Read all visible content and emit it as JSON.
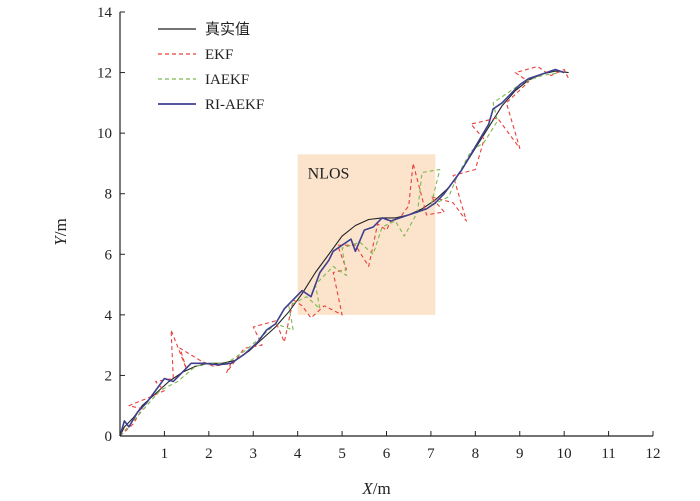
{
  "chart_data": {
    "type": "line",
    "xlabel_var": "X",
    "xlabel_unit": "/m",
    "ylabel_var": "Y",
    "ylabel_unit": "/m",
    "xlim": [
      0,
      12
    ],
    "ylim": [
      0,
      14
    ],
    "xticks": [
      1,
      2,
      3,
      4,
      5,
      6,
      7,
      8,
      9,
      10,
      11,
      12
    ],
    "yticks": [
      0,
      2,
      4,
      6,
      8,
      10,
      12,
      14
    ],
    "grid": false,
    "legend_position": "top-left",
    "annotation": {
      "label": "NLOS",
      "region_x": [
        4.0,
        7.1
      ],
      "region_y": [
        4.0,
        9.3
      ],
      "color": "#fbe3cc"
    },
    "series": [
      {
        "name": "真实值",
        "color": "#222222",
        "style": "solid",
        "points": [
          [
            0.0,
            0.0
          ],
          [
            0.1,
            0.3
          ],
          [
            0.3,
            0.6
          ],
          [
            0.5,
            1.0
          ],
          [
            0.8,
            1.4
          ],
          [
            1.1,
            1.8
          ],
          [
            1.4,
            2.1
          ],
          [
            1.7,
            2.3
          ],
          [
            2.0,
            2.4
          ],
          [
            2.3,
            2.4
          ],
          [
            2.6,
            2.5
          ],
          [
            2.9,
            2.8
          ],
          [
            3.2,
            3.2
          ],
          [
            3.5,
            3.6
          ],
          [
            3.8,
            4.1
          ],
          [
            4.1,
            4.7
          ],
          [
            4.4,
            5.4
          ],
          [
            4.7,
            6.0
          ],
          [
            5.0,
            6.6
          ],
          [
            5.3,
            6.95
          ],
          [
            5.6,
            7.15
          ],
          [
            5.9,
            7.2
          ],
          [
            6.2,
            7.2
          ],
          [
            6.5,
            7.3
          ],
          [
            6.8,
            7.5
          ],
          [
            7.1,
            7.8
          ],
          [
            7.4,
            8.2
          ],
          [
            7.7,
            8.8
          ],
          [
            8.0,
            9.5
          ],
          [
            8.3,
            10.2
          ],
          [
            8.6,
            10.9
          ],
          [
            8.9,
            11.4
          ],
          [
            9.2,
            11.75
          ],
          [
            9.5,
            11.95
          ],
          [
            9.8,
            12.05
          ],
          [
            10.1,
            12.0
          ]
        ]
      },
      {
        "name": "EKF",
        "color": "#e8403a",
        "style": "dashed",
        "points": [
          [
            0.0,
            0.0
          ],
          [
            0.3,
            0.4
          ],
          [
            0.5,
            0.9
          ],
          [
            0.2,
            1.0
          ],
          [
            0.7,
            1.3
          ],
          [
            1.0,
            1.5
          ],
          [
            0.8,
            1.8
          ],
          [
            1.2,
            1.9
          ],
          [
            1.15,
            3.5
          ],
          [
            1.5,
            2.2
          ],
          [
            1.35,
            2.9
          ],
          [
            1.8,
            2.5
          ],
          [
            2.1,
            2.3
          ],
          [
            2.5,
            2.4
          ],
          [
            2.4,
            2.1
          ],
          [
            2.8,
            2.9
          ],
          [
            3.2,
            3.0
          ],
          [
            3.0,
            3.6
          ],
          [
            3.5,
            3.8
          ],
          [
            3.7,
            3.1
          ],
          [
            3.9,
            4.5
          ],
          [
            4.1,
            4.3
          ],
          [
            4.3,
            3.9
          ],
          [
            4.6,
            4.3
          ],
          [
            5.0,
            4.0
          ],
          [
            4.8,
            5.4
          ],
          [
            5.1,
            5.5
          ],
          [
            4.9,
            6.3
          ],
          [
            5.3,
            6.3
          ],
          [
            5.6,
            5.6
          ],
          [
            5.8,
            7.0
          ],
          [
            6.0,
            6.8
          ],
          [
            6.1,
            7.1
          ],
          [
            6.3,
            7.2
          ],
          [
            6.5,
            7.6
          ],
          [
            6.6,
            9.0
          ],
          [
            6.9,
            7.3
          ],
          [
            7.3,
            7.4
          ],
          [
            7.0,
            7.9
          ],
          [
            7.5,
            7.7
          ],
          [
            7.8,
            7.1
          ],
          [
            7.5,
            8.6
          ],
          [
            8.0,
            8.8
          ],
          [
            8.2,
            9.8
          ],
          [
            7.9,
            10.3
          ],
          [
            8.5,
            10.5
          ],
          [
            9.0,
            9.5
          ],
          [
            8.7,
            11.0
          ],
          [
            9.2,
            11.7
          ],
          [
            8.9,
            12.0
          ],
          [
            9.4,
            12.2
          ],
          [
            9.7,
            11.9
          ],
          [
            10.0,
            12.1
          ],
          [
            10.1,
            11.8
          ]
        ]
      },
      {
        "name": "IAEKF",
        "color": "#7db94e",
        "style": "dashed",
        "points": [
          [
            0.0,
            0.0
          ],
          [
            0.3,
            0.5
          ],
          [
            0.6,
            1.0
          ],
          [
            0.9,
            1.5
          ],
          [
            1.3,
            1.8
          ],
          [
            1.7,
            2.3
          ],
          [
            2.0,
            2.4
          ],
          [
            2.4,
            2.4
          ],
          [
            2.8,
            2.8
          ],
          [
            3.2,
            3.3
          ],
          [
            3.5,
            3.7
          ],
          [
            3.9,
            3.5
          ],
          [
            3.8,
            4.3
          ],
          [
            4.2,
            4.6
          ],
          [
            4.5,
            4.2
          ],
          [
            4.4,
            5.0
          ],
          [
            4.8,
            5.6
          ],
          [
            5.1,
            5.3
          ],
          [
            5.0,
            6.2
          ],
          [
            5.4,
            6.4
          ],
          [
            5.7,
            6.0
          ],
          [
            5.9,
            6.9
          ],
          [
            6.2,
            7.1
          ],
          [
            6.4,
            6.6
          ],
          [
            6.7,
            7.4
          ],
          [
            6.8,
            8.7
          ],
          [
            7.2,
            8.8
          ],
          [
            7.0,
            7.6
          ],
          [
            7.4,
            7.9
          ],
          [
            7.6,
            8.6
          ],
          [
            7.9,
            9.4
          ],
          [
            8.2,
            9.7
          ],
          [
            8.5,
            10.4
          ],
          [
            8.4,
            11.0
          ],
          [
            8.8,
            11.4
          ],
          [
            9.1,
            11.7
          ],
          [
            9.5,
            11.9
          ],
          [
            9.9,
            12.0
          ]
        ]
      },
      {
        "name": "RI-AEKF",
        "color": "#3f3f8f",
        "style": "solid",
        "points": [
          [
            0.0,
            0.0
          ],
          [
            0.1,
            0.5
          ],
          [
            0.2,
            0.3
          ],
          [
            0.4,
            0.8
          ],
          [
            0.6,
            1.1
          ],
          [
            0.8,
            1.5
          ],
          [
            1.0,
            1.9
          ],
          [
            1.2,
            1.8
          ],
          [
            1.4,
            2.1
          ],
          [
            1.6,
            2.4
          ],
          [
            1.9,
            2.4
          ],
          [
            2.2,
            2.35
          ],
          [
            2.5,
            2.4
          ],
          [
            2.8,
            2.7
          ],
          [
            3.1,
            3.1
          ],
          [
            3.3,
            3.5
          ],
          [
            3.5,
            3.7
          ],
          [
            3.7,
            4.2
          ],
          [
            3.9,
            4.5
          ],
          [
            4.1,
            4.8
          ],
          [
            4.3,
            4.6
          ],
          [
            4.5,
            5.4
          ],
          [
            4.7,
            5.8
          ],
          [
            4.8,
            6.1
          ],
          [
            5.0,
            6.3
          ],
          [
            5.2,
            6.5
          ],
          [
            5.3,
            6.1
          ],
          [
            5.5,
            6.8
          ],
          [
            5.7,
            6.9
          ],
          [
            5.9,
            7.2
          ],
          [
            6.1,
            7.1
          ],
          [
            6.3,
            7.2
          ],
          [
            6.5,
            7.3
          ],
          [
            6.7,
            7.4
          ],
          [
            6.9,
            7.5
          ],
          [
            7.1,
            7.7
          ],
          [
            7.3,
            8.0
          ],
          [
            7.5,
            8.4
          ],
          [
            7.7,
            8.8
          ],
          [
            7.9,
            9.3
          ],
          [
            8.1,
            9.8
          ],
          [
            8.3,
            10.3
          ],
          [
            8.4,
            10.8
          ],
          [
            8.6,
            11.0
          ],
          [
            8.8,
            11.3
          ],
          [
            9.0,
            11.6
          ],
          [
            9.2,
            11.8
          ],
          [
            9.4,
            11.9
          ],
          [
            9.6,
            12.0
          ],
          [
            9.8,
            12.1
          ],
          [
            10.0,
            12.0
          ]
        ]
      }
    ]
  }
}
